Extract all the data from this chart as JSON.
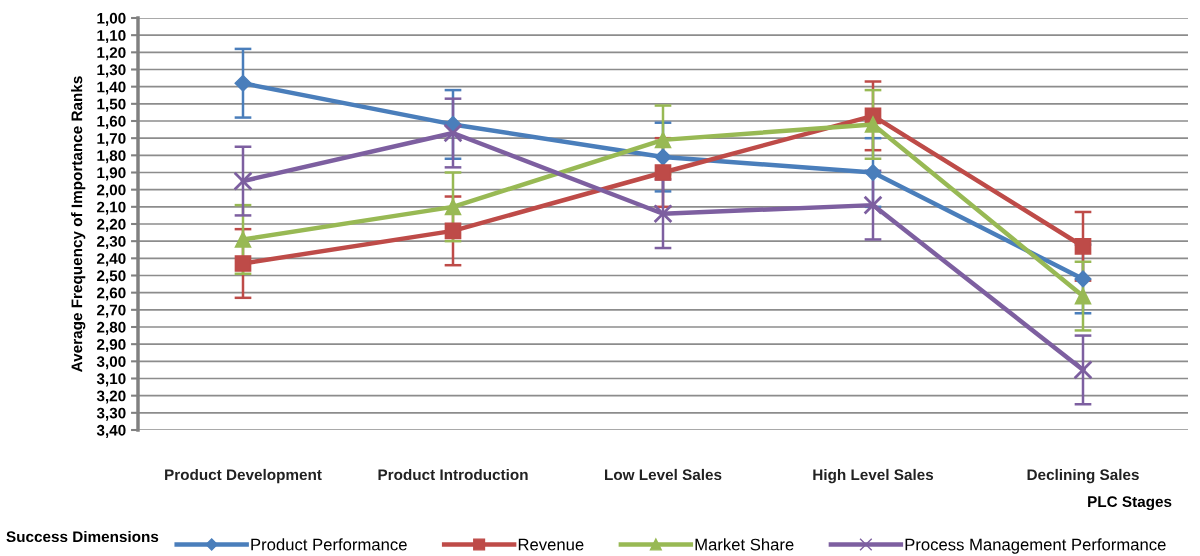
{
  "chart_data": {
    "type": "line",
    "ylabel": "Average Frequency of Importance Ranks",
    "xlabel": "PLC Stages",
    "legend_title": "Success Dimensions",
    "categories": [
      "Product Development",
      "Product Introduction",
      "Low Level Sales",
      "High Level Sales",
      "Declining Sales"
    ],
    "ylim": [
      3.4,
      1.0
    ],
    "yticks": [
      {
        "value": 1.0,
        "label": "1,00"
      },
      {
        "value": 1.1,
        "label": "1,10"
      },
      {
        "value": 1.2,
        "label": "1,20"
      },
      {
        "value": 1.3,
        "label": "1,30"
      },
      {
        "value": 1.4,
        "label": "1,40"
      },
      {
        "value": 1.5,
        "label": "1,50"
      },
      {
        "value": 1.6,
        "label": "1,60"
      },
      {
        "value": 1.7,
        "label": "1,70"
      },
      {
        "value": 1.8,
        "label": "1,80"
      },
      {
        "value": 1.9,
        "label": "1,90"
      },
      {
        "value": 2.0,
        "label": "2,00"
      },
      {
        "value": 2.1,
        "label": "2,10"
      },
      {
        "value": 2.2,
        "label": "2,20"
      },
      {
        "value": 2.3,
        "label": "2,30"
      },
      {
        "value": 2.4,
        "label": "2,40"
      },
      {
        "value": 2.5,
        "label": "2,50"
      },
      {
        "value": 2.6,
        "label": "2,60"
      },
      {
        "value": 2.7,
        "label": "2,70"
      },
      {
        "value": 2.8,
        "label": "2,80"
      },
      {
        "value": 2.9,
        "label": "2,90"
      },
      {
        "value": 3.0,
        "label": "3,00"
      },
      {
        "value": 3.1,
        "label": "3,10"
      },
      {
        "value": 3.2,
        "label": "3,20"
      },
      {
        "value": 3.3,
        "label": "3,30"
      },
      {
        "value": 3.4,
        "label": "3,40"
      }
    ],
    "grid": "y",
    "legend": "bottom",
    "series": [
      {
        "name": "Product Performance",
        "color": "#4a7ebb",
        "marker": "diamond",
        "values": [
          1.38,
          1.62,
          1.81,
          1.9,
          2.52
        ],
        "errors": [
          0.2,
          0.2,
          0.2,
          0.2,
          0.2
        ]
      },
      {
        "name": "Revenue",
        "color": "#be4b48",
        "marker": "square",
        "values": [
          2.43,
          2.24,
          1.9,
          1.57,
          2.33
        ],
        "errors": [
          0.2,
          0.2,
          0.2,
          0.2,
          0.2
        ]
      },
      {
        "name": "Market Share",
        "color": "#98b954",
        "marker": "triangle",
        "values": [
          2.29,
          2.1,
          1.71,
          1.62,
          2.62
        ],
        "errors": [
          0.2,
          0.2,
          0.2,
          0.2,
          0.2
        ]
      },
      {
        "name": "Process Management Performance",
        "color": "#7d5fa0",
        "marker": "cross",
        "values": [
          1.95,
          1.67,
          2.14,
          2.09,
          3.05
        ],
        "errors": [
          0.2,
          0.2,
          0.2,
          0.2,
          0.2
        ]
      }
    ]
  }
}
